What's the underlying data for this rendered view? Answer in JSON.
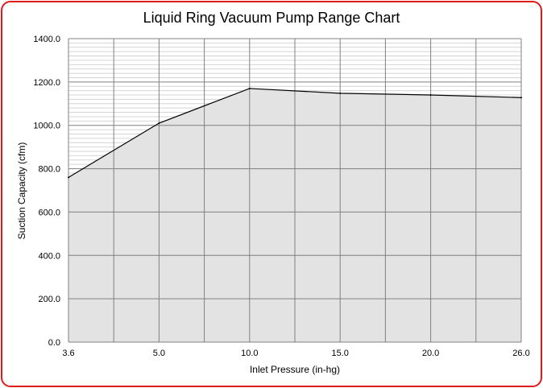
{
  "chart_data": {
    "type": "area",
    "title": "Liquid Ring Vacuum Pump Range Chart",
    "xlabel": "Inlet Pressure (in-hg)",
    "ylabel": "Suction Capacity (cfm)",
    "categories": [
      "3.6",
      "5.0",
      "10.0",
      "15.0",
      "20.0",
      "26.0"
    ],
    "x": [
      3.6,
      5.0,
      10.0,
      15.0,
      20.0,
      26.0
    ],
    "values": [
      760,
      1010,
      1170,
      1148,
      1140,
      1128
    ],
    "ylim": [
      0,
      1400
    ],
    "y_ticks": [
      "0.0",
      "200.0",
      "400.0",
      "600.0",
      "800.0",
      "1000.0",
      "1200.0",
      "1400.0"
    ],
    "y_tick_values": [
      0,
      200,
      400,
      600,
      800,
      1000,
      1200,
      1400
    ],
    "grid": true,
    "legend": "none",
    "colors": {
      "border": "#e01b1b",
      "fill": "#e3e3e3",
      "line": "#000000",
      "major_grid": "#808080",
      "minor_grid": "#d4d4d4"
    }
  }
}
